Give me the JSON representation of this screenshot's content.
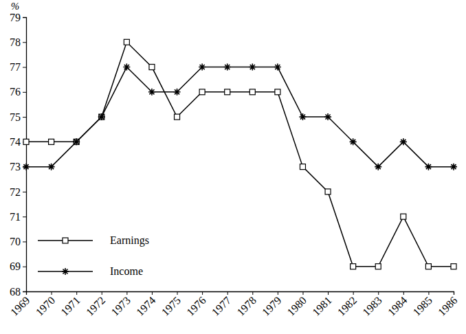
{
  "chart_data": {
    "type": "line",
    "y_label": "%",
    "categories": [
      "1969",
      "1970",
      "1971",
      "1972",
      "1973",
      "1974",
      "1975",
      "1976",
      "1977",
      "1978",
      "1979",
      "1980",
      "1981",
      "1982",
      "1983",
      "1984",
      "1985",
      "1986"
    ],
    "series": [
      {
        "name": "Earnings",
        "color": "#000000",
        "marker": "square",
        "values": [
          74,
          74,
          74,
          75,
          78,
          77,
          75,
          76,
          76,
          76,
          76,
          73,
          72,
          69,
          69,
          71,
          69,
          69
        ]
      },
      {
        "name": "Income",
        "color": "#000000",
        "marker": "asterisk",
        "values": [
          73,
          73,
          74,
          75,
          77,
          76,
          76,
          77,
          77,
          77,
          77,
          75,
          75,
          74,
          73,
          74,
          73,
          73
        ]
      }
    ],
    "ylim": [
      68,
      79
    ],
    "yticks": [
      68,
      69,
      70,
      71,
      72,
      73,
      74,
      75,
      76,
      77,
      78,
      79
    ],
    "grid": false,
    "legend": "lower left"
  }
}
